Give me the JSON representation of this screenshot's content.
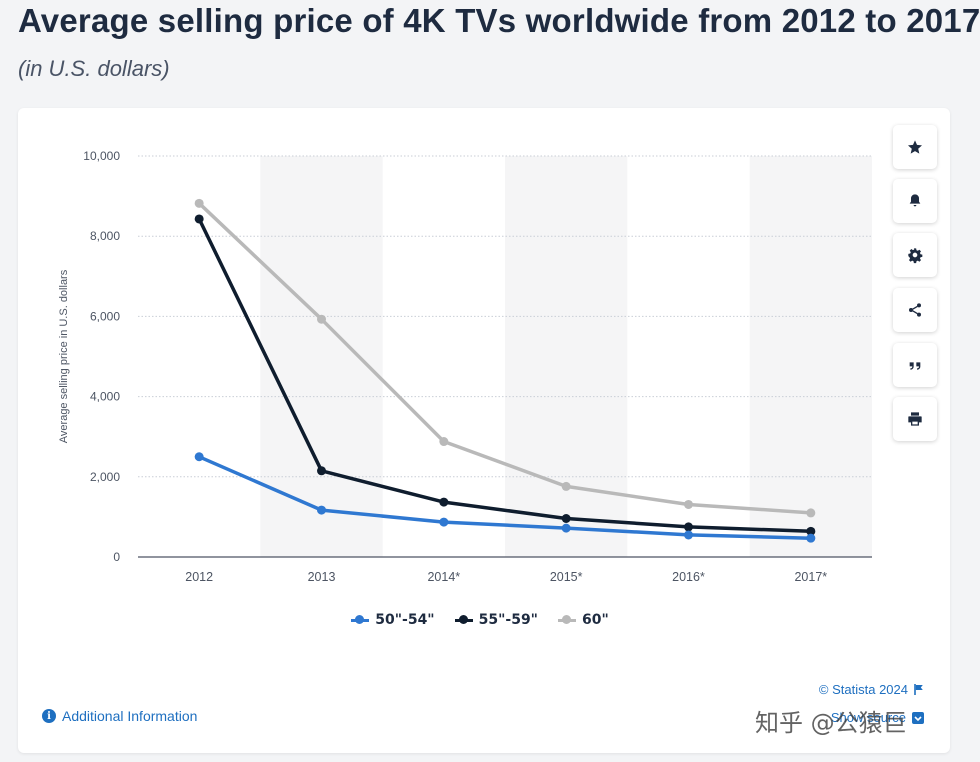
{
  "header": {
    "title": "Average selling price of 4K TVs worldwide from 2012 to 2017",
    "subtitle": "(in U.S. dollars)"
  },
  "toolbar": {
    "buttons": [
      {
        "icon": "star-icon"
      },
      {
        "icon": "bell-icon"
      },
      {
        "icon": "gear-icon"
      },
      {
        "icon": "share-icon"
      },
      {
        "icon": "quote-icon"
      },
      {
        "icon": "print-icon"
      }
    ]
  },
  "chart_data": {
    "type": "line",
    "title": "Average selling price of 4K TVs worldwide from 2012 to 2017",
    "subtitle": "(in U.S. dollars)",
    "xlabel": "",
    "ylabel": "Average selling price in U.S. dollars",
    "categories": [
      "2012",
      "2013",
      "2014*",
      "2015*",
      "2016*",
      "2017*"
    ],
    "ylim": [
      0,
      10000
    ],
    "yticks": [
      0,
      2000,
      4000,
      6000,
      8000,
      10000
    ],
    "ytick_labels": [
      "0",
      "2,000",
      "4,000",
      "6,000",
      "8,000",
      "10,000"
    ],
    "grid": true,
    "legend_position": "bottom",
    "series": [
      {
        "name": "50\"-54\"",
        "color": "#2f78d1",
        "values": [
          2500,
          1170,
          870,
          720,
          550,
          470
        ]
      },
      {
        "name": "55\"-59\"",
        "color": "#0f1d2e",
        "values": [
          8430,
          2150,
          1370,
          960,
          750,
          640
        ]
      },
      {
        "name": "60\"",
        "color": "#b9b9b9",
        "values": [
          8820,
          5930,
          2880,
          1760,
          1310,
          1100
        ]
      }
    ]
  },
  "footer": {
    "additional_info": "Additional Information",
    "copyright": "© Statista 2024",
    "show_source": "Show source",
    "watermark": "知乎 @公猿巨"
  }
}
